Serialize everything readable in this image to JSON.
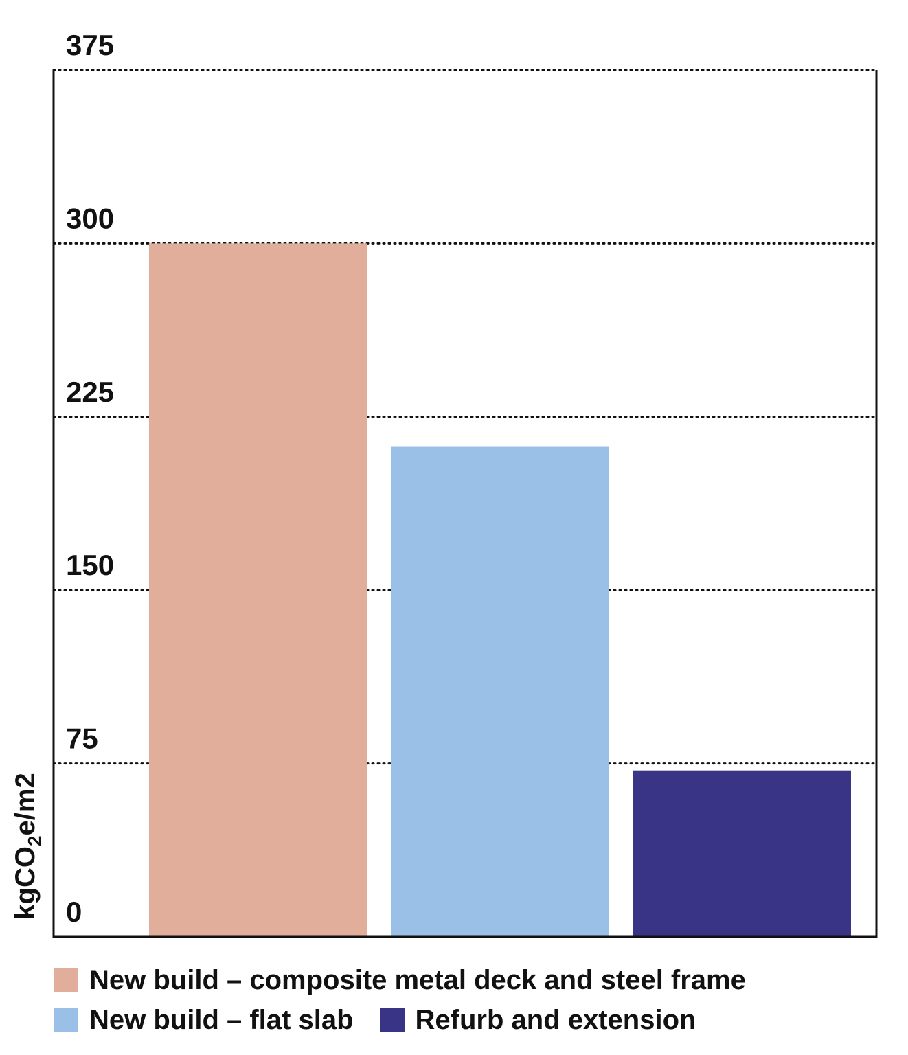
{
  "chart_data": {
    "type": "bar",
    "categories": [
      "New build – composite metal deck and steel frame",
      "New build – flat slab",
      "Refurb and extension"
    ],
    "values": [
      300,
      212,
      72
    ],
    "colors": [
      "#e1ae9c",
      "#9ac0e8",
      "#3a3486"
    ],
    "ylabel": "kgCO₂e/m2",
    "ylim": [
      0,
      375
    ],
    "yticks": [
      "0",
      "75",
      "150",
      "225",
      "300",
      "375"
    ],
    "grid": "horizontal dotted",
    "legend_placement": "bottom"
  },
  "legend": {
    "items": [
      {
        "label": "New build – composite metal deck and steel frame",
        "color": "#e1ae9c"
      },
      {
        "label": "New build – flat slab",
        "color": "#9ac0e8"
      },
      {
        "label": "Refurb and extension",
        "color": "#3a3486"
      }
    ]
  }
}
